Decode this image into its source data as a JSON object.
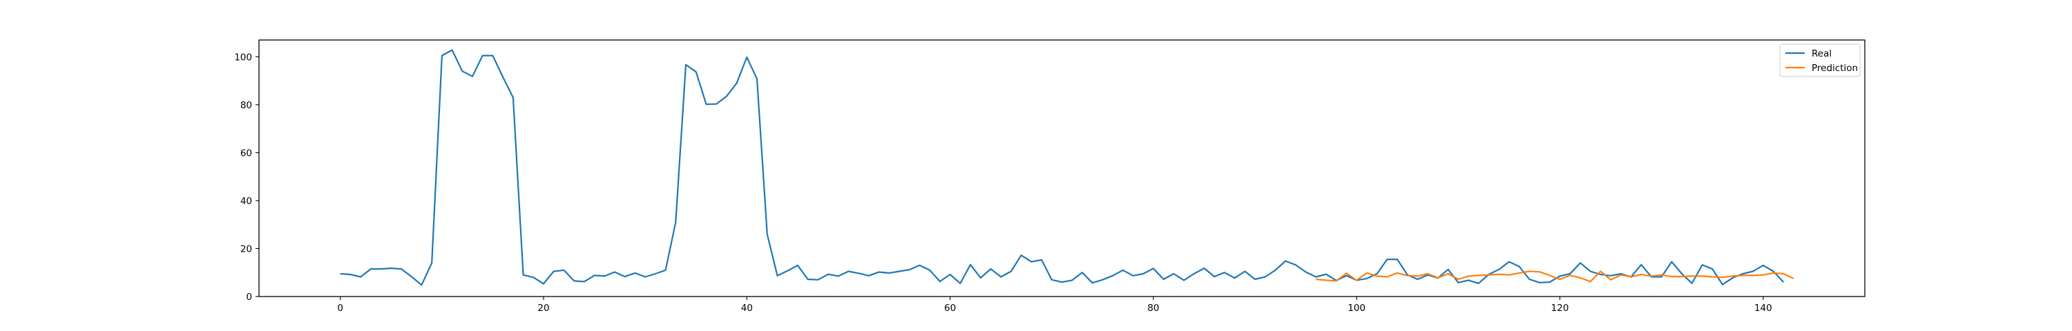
{
  "chart_data": {
    "type": "line",
    "title": "",
    "xlabel": "",
    "ylabel": "",
    "xlim": [
      -8,
      150
    ],
    "ylim": [
      0,
      107
    ],
    "xticks": [
      0,
      20,
      40,
      60,
      80,
      100,
      120,
      140
    ],
    "yticks": [
      0,
      20,
      40,
      60,
      80,
      100
    ],
    "legend_position": "top-right",
    "series": [
      {
        "name": "Real",
        "color": "#1f77b4",
        "x_start": 0,
        "values": [
          9.5,
          9.2,
          8.2,
          11.5,
          11.5,
          11.8,
          11.5,
          8.3,
          4.8,
          14.0,
          100.5,
          102.8,
          94.0,
          91.8,
          100.5,
          100.5,
          91.5,
          83.0,
          9.0,
          8.0,
          5.3,
          10.5,
          11.0,
          6.5,
          6.2,
          8.8,
          8.5,
          10.2,
          8.3,
          9.8,
          8.2,
          9.5,
          11.0,
          31.0,
          96.7,
          93.7,
          80.2,
          80.3,
          83.5,
          89.0,
          99.8,
          90.8,
          26.0,
          8.7,
          10.7,
          13.0,
          7.2,
          7.0,
          9.3,
          8.5,
          10.5,
          9.7,
          8.7,
          10.2,
          9.8,
          10.5,
          11.2,
          13.0,
          11.0,
          6.3,
          9.2,
          5.5,
          13.3,
          7.8,
          11.5,
          8.2,
          10.5,
          17.2,
          14.5,
          15.3,
          7.0,
          6.0,
          6.8,
          10.0,
          5.7,
          7.0,
          8.7,
          11.0,
          8.7,
          9.5,
          11.7,
          7.2,
          9.5,
          6.8,
          9.5,
          11.8,
          8.3,
          10.0,
          7.7,
          10.5,
          7.2,
          8.2,
          11.0,
          14.8,
          13.2,
          10.2,
          8.2,
          9.3,
          6.7,
          8.7,
          6.8,
          7.5,
          9.5,
          15.5,
          15.5,
          9.0,
          7.2,
          9.0,
          7.7,
          11.3,
          5.8,
          6.8,
          5.5,
          9.2,
          11.3,
          14.5,
          12.5,
          7.2,
          5.8,
          6.0,
          8.5,
          9.5,
          14.0,
          10.5,
          9.2,
          8.7,
          9.5,
          8.2,
          13.3,
          8.2,
          8.2,
          14.5,
          9.5,
          5.5,
          13.2,
          11.5,
          5.0,
          7.8,
          9.5,
          10.5,
          13.0,
          10.5,
          6.0
        ]
      },
      {
        "name": "Prediction",
        "color": "#ff7f0e",
        "x_start": 96,
        "values": [
          7.2,
          6.8,
          6.5,
          9.7,
          6.8,
          9.8,
          8.5,
          8.2,
          9.8,
          8.7,
          8.5,
          9.5,
          7.8,
          9.5,
          7.2,
          8.5,
          8.8,
          9.0,
          9.3,
          9.0,
          9.8,
          10.5,
          10.3,
          8.8,
          7.2,
          8.8,
          7.8,
          6.2,
          10.5,
          7.0,
          9.0,
          8.2,
          9.2,
          8.5,
          9.0,
          8.3,
          8.3,
          8.5,
          8.5,
          8.2,
          8.0,
          8.5,
          8.8,
          8.8,
          9.0,
          9.8,
          9.5,
          7.5
        ]
      }
    ]
  }
}
